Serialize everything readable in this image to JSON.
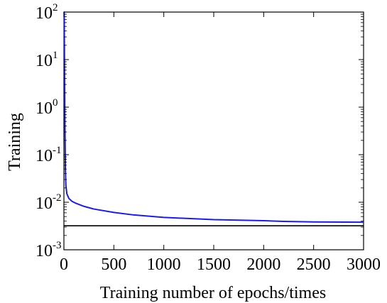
{
  "chart_data": {
    "type": "line",
    "title": "",
    "xlabel": "Training number of epochs/times",
    "ylabel": "Training",
    "xlim": [
      0,
      3000
    ],
    "ylim": [
      0.001,
      100
    ],
    "yscale": "log",
    "grid": false,
    "x_ticks": [
      {
        "value": 0,
        "label": "0"
      },
      {
        "value": 500,
        "label": "500"
      },
      {
        "value": 1000,
        "label": "1000"
      },
      {
        "value": 1500,
        "label": "1500"
      },
      {
        "value": 2000,
        "label": "2000"
      },
      {
        "value": 2500,
        "label": "2500"
      },
      {
        "value": 3000,
        "label": "3000"
      }
    ],
    "y_ticks": [
      {
        "value": 0.001,
        "base": "10",
        "exp": "-3"
      },
      {
        "value": 0.01,
        "base": "10",
        "exp": "-2"
      },
      {
        "value": 0.1,
        "base": "10",
        "exp": "-1"
      },
      {
        "value": 1,
        "base": "10",
        "exp": "0"
      },
      {
        "value": 10,
        "base": "10",
        "exp": "1"
      },
      {
        "value": 100,
        "base": "10",
        "exp": "2"
      }
    ],
    "series": [
      {
        "color": "#1f1fcc",
        "x": [
          0,
          3,
          6,
          10,
          15,
          20,
          30,
          50,
          80,
          120,
          200,
          300,
          500,
          700,
          1000,
          1500,
          2000,
          2200,
          2500,
          3000
        ],
        "y": [
          100,
          100,
          10,
          0.5,
          0.05,
          0.022,
          0.015,
          0.012,
          0.0105,
          0.0095,
          0.0082,
          0.0072,
          0.0061,
          0.0054,
          0.0048,
          0.0043,
          0.0041,
          0.00395,
          0.00385,
          0.0038
        ]
      },
      {
        "color": "#000000",
        "x": [
          0,
          3000
        ],
        "y": [
          0.0032,
          0.0032
        ]
      }
    ]
  }
}
